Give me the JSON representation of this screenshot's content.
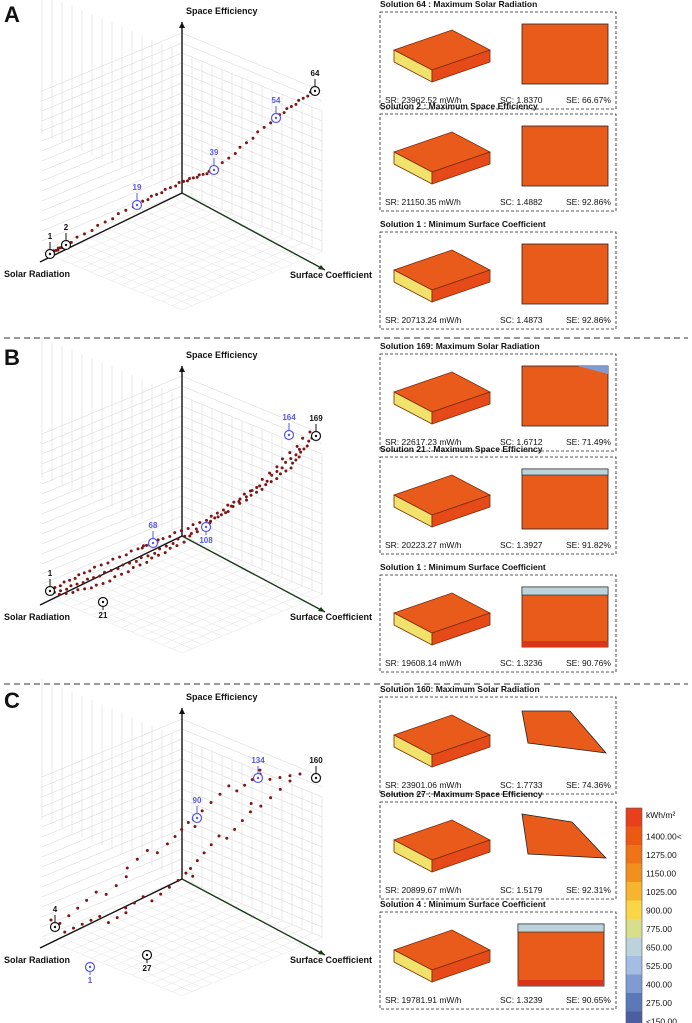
{
  "figure": {
    "axes": {
      "y": "Space Efficiency",
      "x": "Solar Radiation",
      "z": "Surface Coefficient"
    },
    "legend": {
      "unit": "kWh/m²",
      "labels": [
        "1400.00<",
        "1275.00",
        "1150.00",
        "1025.00",
        "900.00",
        "775.00",
        "650.00",
        "525.00",
        "400.00",
        "275.00",
        "<150.00"
      ],
      "colors": [
        "#e8401c",
        "#ec5a12",
        "#ef7417",
        "#f2901e",
        "#f6b52c",
        "#f9d548",
        "#d8df8c",
        "#bcd3dc",
        "#a4bde3",
        "#7f9bd1",
        "#5d78b8",
        "#4b5fa0"
      ]
    },
    "colors": {
      "building_top": "#e95b1a",
      "building_side": "#f0e26a",
      "building_edge": "#e54a18",
      "highlight": "#5858e0",
      "point": "#7a1818"
    }
  },
  "panels": [
    {
      "letter": "A",
      "solutions": [
        {
          "title": "Solution 64 : Maximum Solar Radiation",
          "sr": "SR:  23962.52 mW/h",
          "sc": "SC:  1.8370",
          "se": "SE:  66.67%"
        },
        {
          "title": "Solution 2 : Maximum Space Efficiency",
          "sr": "SR:  21150.35 mW/h",
          "sc": "SC:  1.4882",
          "se": "SE:  92.86%"
        },
        {
          "title": "Solution 1 : Minimum Surface Coefficient",
          "sr": "SR:  20713.24 mW/h",
          "sc": "SC:  1.4873",
          "se": "SE:  92.86%"
        }
      ]
    },
    {
      "letter": "B",
      "solutions": [
        {
          "title": "Solution 169: Maximum Solar Radiation",
          "sr": "SR:  22617.23 mW/h",
          "sc": "SC:  1.6712",
          "se": "SE:  71.49%"
        },
        {
          "title": "Solution 21 : Maximum Space Efficiency",
          "sr": "SR:  20223.27 mW/h",
          "sc": "SC:  1.3927",
          "se": "SE:  91.82%"
        },
        {
          "title": "Solution 1 : Minimum Surface Coefficient",
          "sr": "SR:  19608.14 mW/h",
          "sc": "SC:  1.3236",
          "se": "SE:  90.76%"
        }
      ]
    },
    {
      "letter": "C",
      "solutions": [
        {
          "title": "Solution 160: Maximum Solar Radiation",
          "sr": "SR:  23901.06 mW/h",
          "sc": "SC:  1.7733",
          "se": "SE:  74.36%"
        },
        {
          "title": "Solution 27 : Maximum Space Efficiency",
          "sr": "SR:  20899.67 mW/h",
          "sc": "SC:  1.5179",
          "se": "SE:  92.31%"
        },
        {
          "title": "Solution 4 : Minimum Surface Coefficient",
          "sr": "SR:  19781.91 mW/h",
          "sc": "SC:  1.3239",
          "se": "SE:  90.65%"
        }
      ]
    }
  ],
  "chart_data": [
    {
      "type": "scatter",
      "title": "A",
      "axes": [
        "Solar Radiation",
        "Surface Coefficient",
        "Space Efficiency"
      ],
      "annotated_solutions": [
        {
          "id": "1",
          "highlight": false
        },
        {
          "id": "2",
          "highlight": false
        },
        {
          "id": "19",
          "highlight": true
        },
        {
          "id": "39",
          "highlight": true
        },
        {
          "id": "54",
          "highlight": true
        },
        {
          "id": "64",
          "highlight": false
        }
      ]
    },
    {
      "type": "scatter",
      "title": "B",
      "axes": [
        "Solar Radiation",
        "Surface Coefficient",
        "Space Efficiency"
      ],
      "annotated_solutions": [
        {
          "id": "1",
          "highlight": false
        },
        {
          "id": "21",
          "highlight": false
        },
        {
          "id": "68",
          "highlight": true
        },
        {
          "id": "108",
          "highlight": true
        },
        {
          "id": "164",
          "highlight": true
        },
        {
          "id": "169",
          "highlight": false
        }
      ]
    },
    {
      "type": "scatter",
      "title": "C",
      "axes": [
        "Solar Radiation",
        "Surface Coefficient",
        "Space Efficiency"
      ],
      "annotated_solutions": [
        {
          "id": "1",
          "highlight": true
        },
        {
          "id": "4",
          "highlight": false
        },
        {
          "id": "27",
          "highlight": false
        },
        {
          "id": "90",
          "highlight": true
        },
        {
          "id": "134",
          "highlight": true
        },
        {
          "id": "160",
          "highlight": false
        }
      ]
    }
  ]
}
